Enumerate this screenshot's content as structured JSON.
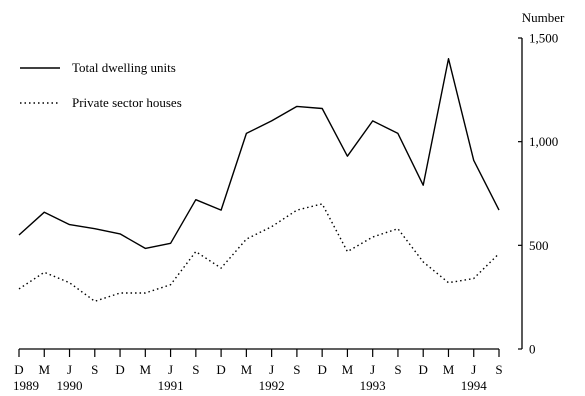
{
  "chart_data": {
    "type": "line",
    "ylabel": "Number",
    "ylim": [
      0,
      1500
    ],
    "yticks": [
      0,
      500,
      1000,
      1500
    ],
    "ytick_labels": [
      "0",
      "500",
      "1,000",
      "1,500"
    ],
    "y_axis_side": "right",
    "grid": false,
    "legend_placement": "top-left",
    "x": [
      "D 1989",
      "M 1990",
      "J 1990",
      "S 1990",
      "D 1990",
      "M 1991",
      "J 1991",
      "S 1991",
      "D 1991",
      "M 1992",
      "J 1992",
      "S 1992",
      "D 1992",
      "M 1993",
      "J 1993",
      "S 1993",
      "D 1993",
      "M 1994",
      "J 1994",
      "S 1994"
    ],
    "month_labels": [
      "D",
      "M",
      "J",
      "S",
      "D",
      "M",
      "J",
      "S",
      "D",
      "M",
      "J",
      "S",
      "D",
      "M",
      "J",
      "S",
      "D",
      "M",
      "J",
      "S"
    ],
    "year_labels": [
      {
        "index": 0,
        "label": "1989"
      },
      {
        "index": 2,
        "label": "1990"
      },
      {
        "index": 6,
        "label": "1991"
      },
      {
        "index": 10,
        "label": "1992"
      },
      {
        "index": 14,
        "label": "1993"
      },
      {
        "index": 18,
        "label": "1994"
      }
    ],
    "series": [
      {
        "name": "Total dwelling units",
        "style": "solid",
        "values": [
          550,
          660,
          600,
          580,
          555,
          485,
          510,
          720,
          670,
          1040,
          1100,
          1170,
          1160,
          930,
          1100,
          1040,
          790,
          1400,
          910,
          670
        ]
      },
      {
        "name": "Private sector houses",
        "style": "dotted",
        "values": [
          290,
          370,
          320,
          230,
          270,
          270,
          310,
          470,
          390,
          530,
          590,
          670,
          700,
          470,
          540,
          580,
          420,
          320,
          340,
          460
        ]
      }
    ]
  }
}
